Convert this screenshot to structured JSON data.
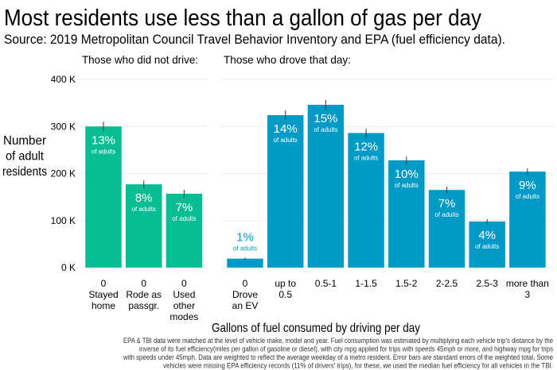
{
  "chart_data": {
    "type": "bar",
    "title": "Most residents use less than a gallon of gas per day",
    "subtitle": "Source: 2019 Metropolitan Council Travel Behavior Inventory and EPA (fuel efficiency data).",
    "ylabel": [
      "Number",
      "of adult",
      "residents"
    ],
    "xlabel": "Gallons of fuel consumed by driving per day",
    "ylim": [
      0,
      400
    ],
    "yticks": [
      0,
      100,
      200,
      300,
      400
    ],
    "ytick_suffix": " K",
    "grid": true,
    "value_sublabel": "of adults",
    "panels": [
      {
        "heading": "Those who did not drive:",
        "color": "#08BD94",
        "categories": [
          [
            "0",
            "Stayed",
            "home"
          ],
          [
            "0",
            "Rode as",
            "passgr."
          ],
          [
            "0",
            "Used",
            "other",
            "modes"
          ]
        ],
        "values": [
          300,
          177,
          157
        ],
        "errors": [
          10,
          8,
          8
        ],
        "percent_labels": [
          "13%",
          "8%",
          "7%"
        ]
      },
      {
        "heading": "Those who drove that day:",
        "color": "#009AC7",
        "categories": [
          [
            "0",
            "Drove",
            "an EV"
          ],
          [
            "up to",
            "0.5"
          ],
          [
            "0.5-1"
          ],
          [
            "1-1.5"
          ],
          [
            "1.5-2"
          ],
          [
            "2-2.5"
          ],
          [
            "2.5-3"
          ],
          [
            "more than",
            "3"
          ]
        ],
        "values": [
          19,
          324,
          346,
          286,
          228,
          165,
          98,
          204
        ],
        "errors": [
          2,
          10,
          10,
          9,
          8,
          7,
          5,
          7
        ],
        "percent_labels": [
          "1%",
          "14%",
          "15%",
          "12%",
          "10%",
          "7%",
          "4%",
          "9%"
        ]
      }
    ]
  },
  "footnote": [
    "EPA & TBI data were matched at the level of vehicle make, model and year. Fuel consumption was estimated by multiplying each vehicle trip's distance by the",
    "inverse of its fuel efficiency(miles per gallon of gasoline or diesel), with city mpg applied for trips with speeds 45mph or more, and highway mpg for trips",
    "with speeds under 45mph. Data are weighted to reflect the average weekday of a metro resident. Error bars are standard errors of the weighted total. Some",
    "vehicles were missing EPA efficiency records (11% of drivers' trips), for these, we used the median fuel efficiency for all vehicles in the TBI."
  ]
}
